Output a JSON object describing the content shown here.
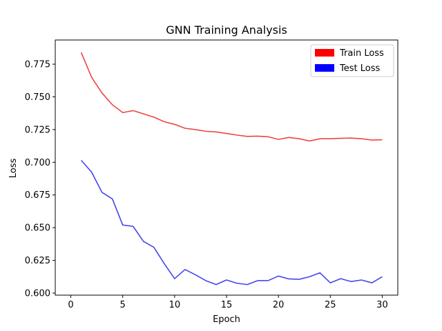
{
  "chart_data": {
    "type": "line",
    "title": "GNN Training Analysis",
    "xlabel": "Epoch",
    "ylabel": "Loss",
    "xlim": [
      -1.5,
      31.5
    ],
    "ylim": [
      0.5984,
      0.7935
    ],
    "xticks": [
      0,
      5,
      10,
      15,
      20,
      25,
      30
    ],
    "yticks": [
      0.6,
      0.625,
      0.65,
      0.675,
      0.7,
      0.725,
      0.75,
      0.775
    ],
    "ytick_labels": [
      "0.600",
      "0.625",
      "0.650",
      "0.675",
      "0.700",
      "0.725",
      "0.750",
      "0.775"
    ],
    "grid": false,
    "legend_position": "top-right",
    "x": [
      1,
      2,
      3,
      4,
      5,
      6,
      7,
      8,
      9,
      10,
      11,
      12,
      13,
      14,
      15,
      16,
      17,
      18,
      19,
      20,
      21,
      22,
      23,
      24,
      25,
      26,
      27,
      28,
      29,
      30
    ],
    "series": [
      {
        "name": "Train Loss",
        "color": "#ff0000",
        "line_color": "#ee4444",
        "values": [
          0.784,
          0.765,
          0.753,
          0.744,
          0.738,
          0.7395,
          0.737,
          0.7345,
          0.731,
          0.729,
          0.726,
          0.725,
          0.7237,
          0.7232,
          0.722,
          0.7208,
          0.7198,
          0.72,
          0.7195,
          0.7175,
          0.719,
          0.718,
          0.7163,
          0.718,
          0.718,
          0.7183,
          0.7185,
          0.718,
          0.717,
          0.7172
        ]
      },
      {
        "name": "Test Loss",
        "color": "#0000ff",
        "line_color": "#4444ee",
        "values": [
          0.7015,
          0.6925,
          0.677,
          0.672,
          0.652,
          0.651,
          0.6395,
          0.635,
          0.6225,
          0.611,
          0.618,
          0.614,
          0.6095,
          0.6065,
          0.61,
          0.6075,
          0.6065,
          0.6095,
          0.6095,
          0.613,
          0.6108,
          0.6105,
          0.6125,
          0.6155,
          0.6078,
          0.611,
          0.6088,
          0.61,
          0.6078,
          0.6125
        ]
      }
    ]
  }
}
